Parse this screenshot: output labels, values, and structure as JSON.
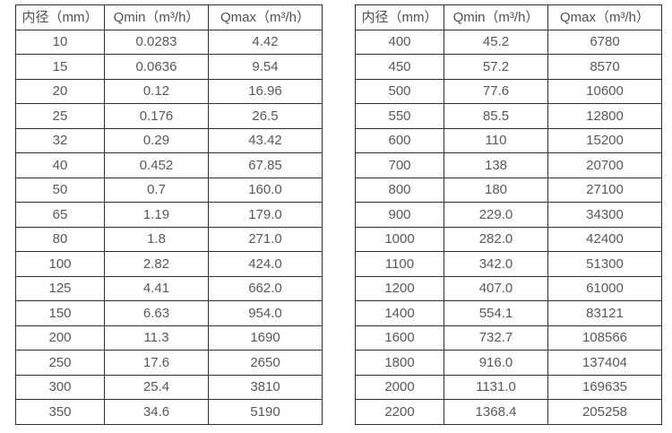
{
  "page": {
    "background": "#ffffff",
    "border_color": "#2e2e2e",
    "text_color": "#58585b"
  },
  "headers": [
    "内径（mm）",
    "Qmin（m³/h）",
    "Qmax（m³/h）"
  ],
  "tables": {
    "left": {
      "rows": [
        [
          "10",
          "0.0283",
          "4.42"
        ],
        [
          "15",
          "0.0636",
          "9.54"
        ],
        [
          "20",
          "0.12",
          "16.96"
        ],
        [
          "25",
          "0.176",
          "26.5"
        ],
        [
          "32",
          "0.29",
          "43.42"
        ],
        [
          "40",
          "0.452",
          "67.85"
        ],
        [
          "50",
          "0.7",
          "160.0"
        ],
        [
          "65",
          "1.19",
          "179.0"
        ],
        [
          "80",
          "1.8",
          "271.0"
        ],
        [
          "100",
          "2.82",
          "424.0"
        ],
        [
          "125",
          "4.41",
          "662.0"
        ],
        [
          "150",
          "6.63",
          "954.0"
        ],
        [
          "200",
          "11.3",
          "1690"
        ],
        [
          "250",
          "17.6",
          "2650"
        ],
        [
          "300",
          "25.4",
          "3810"
        ],
        [
          "350",
          "34.6",
          "5190"
        ]
      ]
    },
    "right": {
      "rows": [
        [
          "400",
          "45.2",
          "6780"
        ],
        [
          "450",
          "57.2",
          "8570"
        ],
        [
          "500",
          "77.6",
          "10600"
        ],
        [
          "550",
          "85.5",
          "12800"
        ],
        [
          "600",
          "110",
          "15200"
        ],
        [
          "700",
          "138",
          "20700"
        ],
        [
          "800",
          "180",
          "27100"
        ],
        [
          "900",
          "229.0",
          "34300"
        ],
        [
          "1000",
          "282.0",
          "42400"
        ],
        [
          "1100",
          "342.0",
          "51300"
        ],
        [
          "1200",
          "407.0",
          "61000"
        ],
        [
          "1400",
          "554.1",
          "83121"
        ],
        [
          "1600",
          "732.7",
          "108566"
        ],
        [
          "1800",
          "916.0",
          "137404"
        ],
        [
          "2000",
          "1131.0",
          "169635"
        ],
        [
          "2200",
          "1368.4",
          "205258"
        ]
      ]
    }
  }
}
